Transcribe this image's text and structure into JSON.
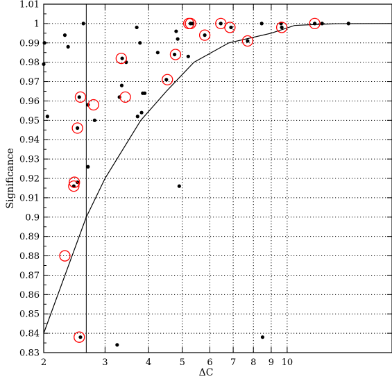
{
  "chart_data": {
    "type": "scatter",
    "title": "",
    "xlabel": "ΔC",
    "ylabel": "Significance",
    "x_scale": "log",
    "xlim": [
      2,
      20
    ],
    "ylim": [
      0.83,
      1.01
    ],
    "grid": true,
    "x_ticks": [
      2,
      3,
      4,
      5,
      6,
      7,
      8,
      9,
      10
    ],
    "x_tick_labels": [
      "2",
      "3",
      "4",
      "5",
      "6",
      "7",
      "8",
      "9",
      "10"
    ],
    "y_ticks": [
      0.83,
      0.84,
      0.85,
      0.86,
      0.87,
      0.88,
      0.89,
      0.9,
      0.91,
      0.92,
      0.93,
      0.94,
      0.95,
      0.96,
      0.97,
      0.98,
      0.99,
      1.0,
      1.01
    ],
    "y_tick_labels": [
      "0.83",
      "0.84",
      "0.85",
      "0.86",
      "0.87",
      "0.88",
      "0.89",
      "0.9",
      "0.91",
      "0.92",
      "0.93",
      "0.94",
      "0.95",
      "0.96",
      "0.97",
      "0.98",
      "0.99",
      "1",
      "1.01"
    ],
    "vertical_line_x": 2.65,
    "curve": {
      "x": [
        2.0,
        2.65,
        3.0,
        3.8,
        4.5,
        5.4,
        6.8,
        9.0,
        10.5,
        12.0,
        14.0,
        20.0
      ],
      "y": [
        0.84,
        0.9,
        0.92,
        0.95,
        0.965,
        0.98,
        0.99,
        0.995,
        0.999,
        0.9995,
        0.9999,
        1.0
      ]
    },
    "series": [
      {
        "marker": "filled-dot",
        "color": "#000000",
        "x": [
          2.01,
          2.05,
          2.3,
          2.35,
          2.0,
          2.44,
          2.5,
          2.53,
          2.55,
          2.6,
          2.68,
          2.8,
          3.25,
          3.36,
          3.45,
          3.7,
          3.78,
          3.85,
          3.9,
          3.72,
          3.82,
          4.25,
          4.5,
          4.75,
          4.8,
          4.9,
          5.2,
          5.28,
          5.35,
          5.8,
          6.45,
          6.9,
          7.7,
          8.45,
          9.6,
          9.65,
          12.0,
          12.6,
          15.0,
          3.35,
          4.85,
          2.68,
          3.3,
          8.5,
          2.5
        ],
        "y": [
          0.99,
          0.952,
          0.994,
          0.988,
          0.979,
          0.916,
          0.946,
          0.962,
          0.838,
          1.0,
          0.926,
          0.95,
          0.834,
          0.982,
          0.98,
          0.998,
          0.99,
          0.964,
          0.964,
          0.952,
          0.954,
          0.985,
          0.971,
          0.984,
          0.996,
          0.916,
          0.983,
          1.0,
          1.0,
          0.994,
          1.0,
          0.998,
          0.991,
          1.0,
          1.0,
          0.998,
          1.0,
          1.0,
          1.0,
          0.968,
          0.992,
          0.958,
          0.962,
          0.838,
          0.918
        ]
      },
      {
        "marker": "red-circle",
        "color": "#ff0000",
        "x": [
          2.3,
          2.44,
          2.45,
          2.5,
          2.55,
          2.78,
          3.34,
          3.43,
          4.53,
          4.78,
          5.22,
          5.28,
          5.8,
          6.45,
          6.85,
          7.7,
          9.65,
          12.0
        ],
        "y": [
          0.88,
          0.916,
          0.918,
          0.946,
          0.962,
          0.958,
          0.982,
          0.962,
          0.971,
          0.984,
          1.0,
          1.0,
          0.994,
          1.0,
          0.998,
          0.991,
          0.998,
          1.0
        ]
      },
      {
        "marker": "red-circle",
        "color": "#ff0000",
        "x": [
          2.53
        ],
        "y": [
          0.838
        ]
      }
    ]
  },
  "colors": {
    "axis": "#000000",
    "grid": "#000000",
    "points": "#000000",
    "highlight": "#ff0000",
    "background": "#ffffff"
  }
}
